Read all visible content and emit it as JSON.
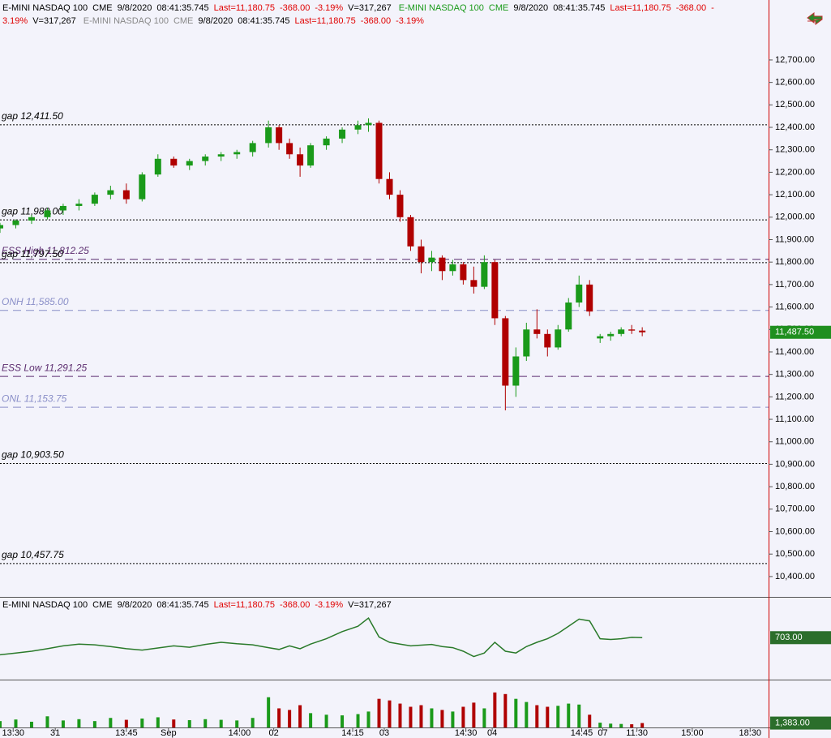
{
  "chart_data": [
    {
      "type": "candlestick",
      "header": {
        "instrument": "E-MINI NASDAQ 100",
        "exchange": "CME",
        "date": "9/8/2020",
        "time": "08:41:35.745",
        "last": "Last=11,180.75",
        "change": "-368.00",
        "change_pct": "-3.19%",
        "volume": "V=317,267"
      },
      "xlim": [
        0,
        146
      ],
      "xticks": [
        {
          "value": 2.5,
          "label": "13:30"
        },
        {
          "value": 10.5,
          "label": "31"
        },
        {
          "value": 24,
          "label": "13:45"
        },
        {
          "value": 32,
          "label": "Sep"
        },
        {
          "value": 45.5,
          "label": "14:00"
        },
        {
          "value": 52,
          "label": "02"
        },
        {
          "value": 67,
          "label": "14:15"
        },
        {
          "value": 73,
          "label": "03"
        },
        {
          "value": 88.5,
          "label": "14:30"
        },
        {
          "value": 93.5,
          "label": "04"
        },
        {
          "value": 110.5,
          "label": "14:45"
        },
        {
          "value": 114.5,
          "label": "07"
        },
        {
          "value": 121,
          "label": "11:30"
        },
        {
          "value": 131.5,
          "label": "15:00"
        },
        {
          "value": 142.5,
          "label": "18:30"
        }
      ],
      "ylim": [
        10313,
        12967
      ],
      "yticks": [
        {
          "value": 10400,
          "label": "10,400.00"
        },
        {
          "value": 10500,
          "label": "10,500.00"
        },
        {
          "value": 10600,
          "label": "10,600.00"
        },
        {
          "value": 10700,
          "label": "10,700.00"
        },
        {
          "value": 10800,
          "label": "10,800.00"
        },
        {
          "value": 10900,
          "label": "10,900.00"
        },
        {
          "value": 11000,
          "label": "11,000.00"
        },
        {
          "value": 11100,
          "label": "11,100.00"
        },
        {
          "value": 11200,
          "label": "11,200.00"
        },
        {
          "value": 11300,
          "label": "11,300.00"
        },
        {
          "value": 11400,
          "label": "11,400.00"
        },
        {
          "value": 11500,
          "label": "11,500.00"
        },
        {
          "value": 11600,
          "label": "11,600.00"
        },
        {
          "value": 11700,
          "label": "11,700.00"
        },
        {
          "value": 11800,
          "label": "11,800.00"
        },
        {
          "value": 11900,
          "label": "11,900.00"
        },
        {
          "value": 12000,
          "label": "12,000.00"
        },
        {
          "value": 12100,
          "label": "12,100.00"
        },
        {
          "value": 12200,
          "label": "12,200.00"
        },
        {
          "value": 12300,
          "label": "12,300.00"
        },
        {
          "value": 12400,
          "label": "12,400.00"
        },
        {
          "value": 12500,
          "label": "12,500.00"
        },
        {
          "value": 12600,
          "label": "12,600.00"
        },
        {
          "value": 12700,
          "label": "12,700.00"
        }
      ],
      "up_color": "#1a9a1a",
      "down_color": "#b00000",
      "x": [
        0,
        3,
        6,
        9,
        12,
        15,
        18,
        21,
        24,
        27,
        30,
        33,
        36,
        39,
        42,
        45,
        48,
        51,
        53,
        55,
        57,
        59,
        62,
        65,
        68,
        70,
        72,
        74,
        76,
        78,
        80,
        82,
        84,
        86,
        88,
        90,
        92,
        94,
        96,
        98,
        100,
        102,
        104,
        106,
        108,
        110,
        112,
        114,
        116,
        118,
        120,
        122
      ],
      "open": [
        11950,
        11965,
        11985,
        12000,
        12030,
        12050,
        12060,
        12100,
        12120,
        12080,
        12190,
        12260,
        12230,
        12250,
        12270,
        12280,
        12290,
        12330,
        12400,
        12330,
        12280,
        12230,
        12320,
        12350,
        12390,
        12410,
        12420,
        12170,
        12100,
        12000,
        11870,
        11800,
        11820,
        11760,
        11790,
        11720,
        11690,
        11800,
        11550,
        11250,
        11380,
        11500,
        11480,
        11420,
        11500,
        11620,
        11700,
        11460,
        11470,
        11480,
        11500,
        11495
      ],
      "high": [
        11975,
        11990,
        12010,
        12040,
        12060,
        12080,
        12110,
        12140,
        12150,
        12200,
        12280,
        12270,
        12260,
        12280,
        12290,
        12300,
        12340,
        12430,
        12410,
        12350,
        12310,
        12330,
        12360,
        12400,
        12430,
        12440,
        12430,
        12200,
        12120,
        12010,
        11900,
        11850,
        11830,
        11810,
        11800,
        11780,
        11830,
        11810,
        11560,
        11420,
        11530,
        11590,
        11500,
        11520,
        11640,
        11740,
        11720,
        11480,
        11490,
        11510,
        11520,
        11510
      ],
      "low": [
        11930,
        11950,
        11970,
        11990,
        12010,
        12030,
        12050,
        12080,
        12060,
        12070,
        12180,
        12220,
        12210,
        12230,
        12250,
        12260,
        12270,
        12310,
        12300,
        12260,
        12180,
        12220,
        12300,
        12330,
        12370,
        12380,
        12150,
        12080,
        11980,
        11850,
        11750,
        11760,
        11720,
        11740,
        11700,
        11660,
        11680,
        11520,
        11140,
        11200,
        11360,
        11460,
        11380,
        11410,
        11490,
        11600,
        11560,
        11440,
        11450,
        11470,
        11480,
        11470
      ],
      "close": [
        11965,
        11985,
        12000,
        12030,
        12050,
        12060,
        12100,
        12120,
        12080,
        12190,
        12260,
        12230,
        12250,
        12270,
        12280,
        12290,
        12330,
        12400,
        12330,
        12280,
        12230,
        12320,
        12350,
        12390,
        12410,
        12420,
        12170,
        12100,
        12000,
        11870,
        11800,
        11820,
        11760,
        11790,
        11720,
        11690,
        11800,
        11550,
        11250,
        11380,
        11500,
        11480,
        11420,
        11500,
        11620,
        11700,
        11580,
        11470,
        11480,
        11500,
        11495,
        11487.5
      ],
      "last_value_label": "11,487.50",
      "last_label_color": "#1f8f1f",
      "reference_lines": [
        {
          "label": "gap 12,411.50",
          "value": 12411.5,
          "style": "dotted",
          "color": "#000000"
        },
        {
          "label": "gap 11,988.00",
          "value": 11988,
          "style": "dotted",
          "color": "#000000"
        },
        {
          "label": "ESS High 11,812.25",
          "value": 11812.25,
          "style": "dashed",
          "color": "#5b2c6f"
        },
        {
          "label": "gap 11,797.50",
          "value": 11797.5,
          "style": "dotted",
          "color": "#000000"
        },
        {
          "label": "ONH 11,585.00",
          "value": 11585,
          "style": "dashed",
          "color": "#8a8fc8"
        },
        {
          "label": "ESS Low 11,291.25",
          "value": 11291.25,
          "style": "dashed",
          "color": "#5b2c6f"
        },
        {
          "label": "ONL 11,153.75",
          "value": 11153.75,
          "style": "dashed",
          "color": "#8a8fc8"
        },
        {
          "label": "gap 10,903.50",
          "value": 10903.5,
          "style": "dotted",
          "color": "#000000"
        },
        {
          "label": "gap 10,457.75",
          "value": 10457.75,
          "style": "dotted",
          "color": "#000000"
        }
      ]
    },
    {
      "type": "line",
      "color": "#2a7a2a",
      "ylim": [
        590,
        790
      ],
      "values": [
        655,
        660,
        665,
        672,
        680,
        685,
        683,
        678,
        672,
        668,
        674,
        680,
        676,
        684,
        690,
        686,
        683,
        675,
        670,
        680,
        672,
        685,
        700,
        720,
        735,
        758,
        705,
        690,
        685,
        680,
        682,
        684,
        678,
        675,
        665,
        650,
        660,
        690,
        665,
        660,
        678,
        690,
        700,
        715,
        735,
        755,
        750,
        700,
        698,
        700,
        704,
        703
      ],
      "last_value_label": "703.00",
      "last_label_color": "#2b6e2b"
    },
    {
      "type": "bar",
      "ylim": [
        0,
        13000
      ],
      "values": [
        2000,
        2500,
        1800,
        3500,
        2200,
        2600,
        2000,
        3000,
        2400,
        2800,
        3200,
        2500,
        2300,
        2600,
        2400,
        2200,
        3000,
        9500,
        6000,
        5500,
        7000,
        4500,
        4000,
        3800,
        4200,
        5000,
        9000,
        8500,
        7500,
        6500,
        7000,
        6000,
        5500,
        5000,
        6500,
        7800,
        6000,
        11000,
        10500,
        9000,
        8000,
        7000,
        6500,
        6800,
        7500,
        7200,
        4000,
        1500,
        1200,
        1100,
        1000,
        1383
      ],
      "last_value_label": "1,383.00",
      "last_label_color": "#2b6e2b"
    }
  ]
}
